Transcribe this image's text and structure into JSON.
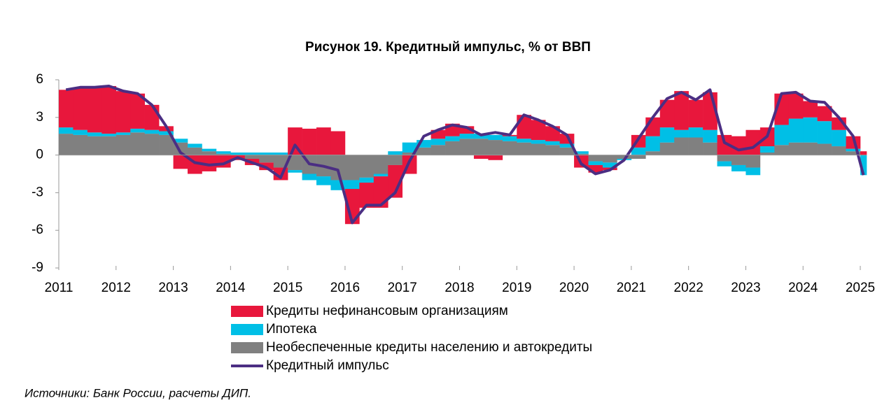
{
  "chart_data": {
    "type": "stacked-bar-line",
    "title": "Рисунок 19. Кредитный импульс, % от ВВП",
    "source": "Источники: Банк России, расчеты ДИП.",
    "x": [
      2011.0,
      2011.25,
      2011.5,
      2011.75,
      2012.0,
      2012.25,
      2012.5,
      2012.75,
      2013.0,
      2013.25,
      2013.5,
      2013.75,
      2014.0,
      2014.25,
      2014.5,
      2014.75,
      2015.0,
      2015.25,
      2015.5,
      2015.75,
      2016.0,
      2016.25,
      2016.5,
      2016.75,
      2017.0,
      2017.25,
      2017.5,
      2017.75,
      2018.0,
      2018.25,
      2018.5,
      2018.75,
      2019.0,
      2019.25,
      2019.5,
      2019.75,
      2020.0,
      2020.25,
      2020.5,
      2020.75,
      2021.0,
      2021.25,
      2021.5,
      2021.75,
      2022.0,
      2022.25,
      2022.5,
      2022.75,
      2023.0,
      2023.25,
      2023.5,
      2023.75,
      2024.0,
      2024.25,
      2024.5,
      2024.75,
      2025.0
    ],
    "series": [
      {
        "name": "Кредиты нефинансовым организациям",
        "color": "#e8173c",
        "values": [
          3.0,
          3.4,
          3.6,
          3.8,
          3.3,
          2.8,
          2.0,
          0.4,
          -1.1,
          -1.5,
          -1.3,
          -1.0,
          -0.4,
          -0.5,
          -0.6,
          -1.0,
          2.2,
          2.1,
          2.2,
          1.9,
          -2.8,
          -2.0,
          -2.5,
          -2.6,
          -1.5,
          0.0,
          0.7,
          1.0,
          0.6,
          -0.3,
          -0.4,
          0.1,
          1.9,
          1.6,
          1.2,
          0.8,
          -1.0,
          -0.6,
          -0.2,
          0.0,
          1.0,
          1.5,
          2.2,
          3.1,
          2.2,
          3.0,
          1.6,
          1.5,
          2.0,
          1.5,
          2.5,
          2.0,
          1.3,
          1.2,
          1.0,
          1.0,
          0.3
        ]
      },
      {
        "name": "Ипотека",
        "color": "#00bfe6",
        "values": [
          0.5,
          0.4,
          0.3,
          0.2,
          0.2,
          0.3,
          0.3,
          0.3,
          0.3,
          0.3,
          0.2,
          0.2,
          0.2,
          0.2,
          0.2,
          0.2,
          -0.2,
          -0.5,
          -0.7,
          -0.8,
          -0.7,
          -0.4,
          -0.2,
          0.3,
          0.8,
          0.6,
          0.5,
          0.4,
          0.4,
          0.4,
          0.4,
          0.4,
          0.3,
          0.3,
          0.3,
          0.3,
          0.2,
          -0.3,
          -0.4,
          -0.1,
          0.6,
          1.2,
          1.2,
          0.6,
          0.8,
          1.0,
          -0.4,
          -0.5,
          -0.6,
          0.5,
          1.6,
          1.9,
          2.0,
          1.8,
          1.3,
          0.2,
          -1.6
        ]
      },
      {
        "name": "Необеспеченные кредиты населению и автокредиты",
        "color": "#808080",
        "values": [
          1.7,
          1.6,
          1.5,
          1.5,
          1.6,
          1.8,
          1.7,
          1.6,
          1.0,
          0.6,
          0.3,
          0.1,
          0.0,
          -0.3,
          -0.6,
          -1.0,
          -1.2,
          -1.5,
          -1.7,
          -2.0,
          -2.0,
          -1.8,
          -1.5,
          -0.8,
          0.2,
          0.6,
          0.8,
          1.1,
          1.3,
          1.3,
          1.2,
          1.1,
          1.0,
          0.9,
          0.8,
          0.6,
          0.1,
          -0.5,
          -0.6,
          -0.3,
          -0.3,
          0.3,
          1.0,
          1.4,
          1.4,
          1.0,
          -0.5,
          -0.8,
          -1.0,
          0.2,
          0.8,
          1.0,
          1.0,
          0.9,
          0.7,
          0.3,
          0.0
        ]
      },
      {
        "name": "Кредитный импульс",
        "color": "#4b2e83",
        "type": "line",
        "values": [
          5.2,
          5.4,
          5.4,
          5.5,
          5.1,
          4.9,
          4.0,
          2.3,
          0.2,
          -0.6,
          -0.8,
          -0.7,
          -0.2,
          -0.6,
          -1.0,
          -1.8,
          0.8,
          -0.7,
          -0.9,
          -1.2,
          -5.4,
          -4.0,
          -4.0,
          -3.0,
          -0.5,
          1.5,
          2.0,
          2.4,
          2.2,
          1.6,
          1.8,
          1.6,
          3.2,
          2.8,
          2.3,
          1.6,
          -0.7,
          -1.5,
          -1.2,
          -0.4,
          1.3,
          3.0,
          4.5,
          5.0,
          4.4,
          5.2,
          1.0,
          0.4,
          0.6,
          1.5,
          4.9,
          5.0,
          4.3,
          4.2,
          3.0,
          1.5,
          -1.6
        ]
      }
    ],
    "xlim": [
      2011,
      2025.11
    ],
    "xticks": [
      2011,
      2012,
      2013,
      2014,
      2015,
      2016,
      2017,
      2018,
      2019,
      2020,
      2021,
      2022,
      2023,
      2024,
      2025
    ],
    "ylim": [
      -9,
      6
    ],
    "yticks": [
      6,
      3,
      0,
      -3,
      -6,
      -9
    ]
  }
}
